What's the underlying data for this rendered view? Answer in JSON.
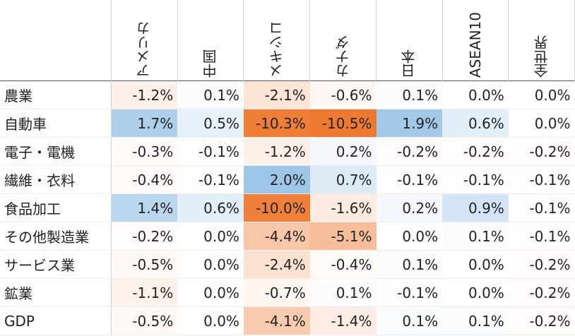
{
  "chart_data": {
    "type": "heatmap",
    "columns": [
      "アメリカ",
      "中国",
      "メキシコ",
      "カナダ",
      "日本",
      "ASEAN10",
      "全世界"
    ],
    "rows": [
      "農業",
      "自動車",
      "電子・電機",
      "繊維・衣料",
      "食品加工",
      "その他製造業",
      "サービス業",
      "鉱業",
      "GDP"
    ],
    "unit": "%",
    "values": [
      [
        -1.2,
        0.1,
        -2.1,
        -0.6,
        0.1,
        0.0,
        0.0
      ],
      [
        1.7,
        0.5,
        -10.3,
        -10.5,
        1.9,
        0.6,
        0.0
      ],
      [
        -0.3,
        -0.1,
        -1.2,
        0.2,
        -0.2,
        -0.2,
        -0.2
      ],
      [
        -0.4,
        -0.1,
        2.0,
        0.7,
        -0.1,
        -0.1,
        -0.1
      ],
      [
        1.4,
        0.6,
        -10.0,
        -1.6,
        0.2,
        0.9,
        -0.1
      ],
      [
        -0.2,
        0.0,
        -4.4,
        -5.1,
        0.0,
        0.1,
        -0.1
      ],
      [
        -0.5,
        0.0,
        -2.4,
        -0.4,
        0.1,
        0.0,
        -0.2
      ],
      [
        -1.1,
        0.0,
        -0.7,
        0.1,
        -0.1,
        0.0,
        -0.2
      ],
      [
        -0.5,
        0.0,
        -4.1,
        -1.4,
        0.1,
        0.1,
        -0.2
      ]
    ],
    "labels": [
      [
        "-1.2%",
        "0.1%",
        "-2.1%",
        "-0.6%",
        "0.1%",
        "0.0%",
        "0.0%"
      ],
      [
        "1.7%",
        "0.5%",
        "-10.3%",
        "-10.5%",
        "1.9%",
        "0.6%",
        "0.0%"
      ],
      [
        "-0.3%",
        "-0.1%",
        "-1.2%",
        "0.2%",
        "-0.2%",
        "-0.2%",
        "-0.2%"
      ],
      [
        "-0.4%",
        "-0.1%",
        "2.0%",
        "0.7%",
        "-0.1%",
        "-0.1%",
        "-0.1%"
      ],
      [
        "1.4%",
        "0.6%",
        "-10.0%",
        "-1.6%",
        "0.2%",
        "0.9%",
        "-0.1%"
      ],
      [
        "-0.2%",
        "0.0%",
        "-4.4%",
        "-5.1%",
        "0.0%",
        "0.1%",
        "-0.1%"
      ],
      [
        "-0.5%",
        "0.0%",
        "-2.4%",
        "-0.4%",
        "0.1%",
        "0.0%",
        "-0.2%"
      ],
      [
        "-1.1%",
        "0.0%",
        "-0.7%",
        "0.1%",
        "-0.1%",
        "0.0%",
        "-0.2%"
      ],
      [
        "-0.5%",
        "0.0%",
        "-4.1%",
        "-1.4%",
        "0.1%",
        "0.1%",
        "-0.2%"
      ]
    ],
    "color_scale": {
      "negative": "#ee7a32",
      "neutral": "#ffffff",
      "positive": "#9ec6e6"
    }
  }
}
